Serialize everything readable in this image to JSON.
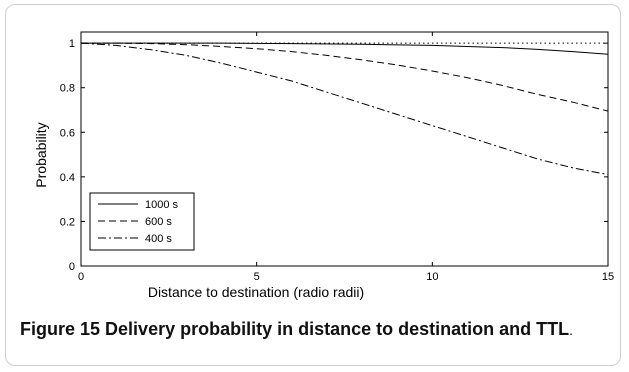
{
  "chart_data": {
    "type": "line",
    "xlabel": "Distance to destination (radio radii)",
    "ylabel": "Probability",
    "xlim": [
      0,
      15
    ],
    "ylim": [
      0,
      1.05
    ],
    "xticks": [
      "0",
      "5",
      "10",
      "15"
    ],
    "yticks": [
      "0",
      "0.2",
      "0.4",
      "0.6",
      "0.8",
      "1"
    ],
    "grid": false,
    "legend_position": "lower-left",
    "series": [
      {
        "name": "1000 s",
        "style": "solid",
        "x": [
          0,
          2,
          4,
          6,
          8,
          10,
          11,
          12,
          13,
          14,
          15
        ],
        "y": [
          1.0,
          1.0,
          1.0,
          0.998,
          0.995,
          0.99,
          0.985,
          0.98,
          0.972,
          0.962,
          0.95
        ]
      },
      {
        "name": "600 s",
        "style": "dashed",
        "x": [
          0,
          1,
          2,
          3,
          4,
          5,
          6,
          7,
          8,
          9,
          10,
          11,
          12,
          13,
          14,
          15
        ],
        "y": [
          1.0,
          1.0,
          0.998,
          0.993,
          0.985,
          0.975,
          0.962,
          0.945,
          0.925,
          0.902,
          0.875,
          0.845,
          0.81,
          0.77,
          0.735,
          0.695
        ]
      },
      {
        "name": "400 s",
        "style": "dashdot",
        "x": [
          0,
          1,
          2,
          3,
          4,
          5,
          6,
          7,
          8,
          9,
          10,
          11,
          12,
          13,
          14,
          15
        ],
        "y": [
          1.0,
          0.99,
          0.97,
          0.945,
          0.91,
          0.87,
          0.83,
          0.78,
          0.73,
          0.68,
          0.63,
          0.58,
          0.53,
          0.48,
          0.44,
          0.41
        ]
      },
      {
        "name": "",
        "style": "dotted",
        "x": [
          0,
          15
        ],
        "y": [
          1.0,
          1.0
        ]
      }
    ]
  },
  "caption": {
    "label": "Figure 15",
    "text_bold": "Delivery probability in distance to destination and TTL",
    "text_end": "."
  }
}
